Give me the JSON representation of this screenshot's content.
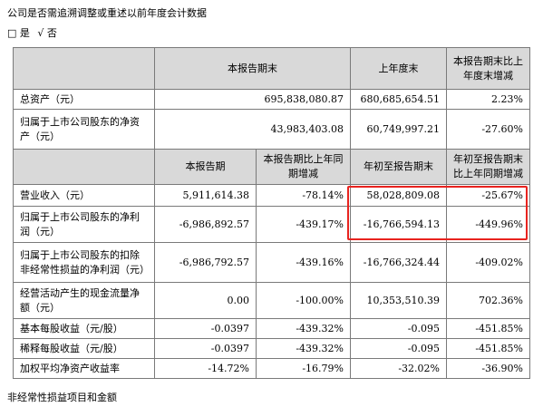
{
  "header": {
    "title": "公司是否需追溯调整或重述以前年度会计数据"
  },
  "options": {
    "yes_box": "□",
    "yes": "是",
    "no_check": "√",
    "no": "否"
  },
  "table1": {
    "headers": [
      "",
      "本报告期末",
      "上年度末",
      "本报告期末比上年度末增减"
    ],
    "rows": [
      [
        "总资产（元）",
        "695,838,080.87",
        "680,685,654.51",
        "2.23%"
      ],
      [
        "归属于上市公司股东的净资产（元）",
        "43,983,403.08",
        "60,749,997.21",
        "-27.60%"
      ]
    ]
  },
  "table2": {
    "headers": [
      "",
      "本报告期",
      "本报告期比上年同期增减",
      "年初至报告期末",
      "年初至报告期末比上年同期增减"
    ],
    "rows": [
      [
        "营业收入（元）",
        "5,911,614.38",
        "-78.14%",
        "58,028,809.08",
        "-25.67%"
      ],
      [
        "归属于上市公司股东的净利润（元）",
        "-6,986,892.57",
        "-439.17%",
        "-16,766,594.13",
        "-449.96%"
      ],
      [
        "归属于上市公司股东的扣除非经常性损益的净利润（元）",
        "-6,986,792.57",
        "-439.16%",
        "-16,766,324.44",
        "-409.02%"
      ],
      [
        "经营活动产生的现金流量净额（元）",
        "0.00",
        "-100.00%",
        "10,353,510.39",
        "702.36%"
      ],
      [
        "基本每股收益（元/股）",
        "-0.0397",
        "-439.32%",
        "-0.095",
        "-451.85%"
      ],
      [
        "稀释每股收益（元/股）",
        "-0.0397",
        "-439.32%",
        "-0.095",
        "-451.85%"
      ],
      [
        "加权平均净资产收益率",
        "-14.72%",
        "-16.79%",
        "-32.02%",
        "-36.90%"
      ]
    ]
  },
  "footer": {
    "text": "非经常性损益项目和金额"
  },
  "colors": {
    "header_bg": "#d9d9d9",
    "highlight": "#e8231f",
    "border": "#7a7a7a"
  }
}
